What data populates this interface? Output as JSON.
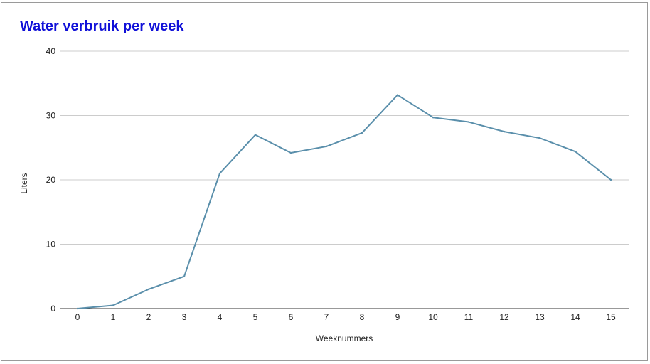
{
  "chart_data": {
    "type": "line",
    "title": "Water verbruik per week",
    "xlabel": "Weeknummers",
    "ylabel": "Liters",
    "x": [
      0,
      1,
      2,
      3,
      4,
      5,
      6,
      7,
      8,
      9,
      10,
      11,
      12,
      13,
      14,
      15
    ],
    "series": [
      {
        "values": [
          0,
          0.5,
          3,
          5,
          21,
          27,
          24.2,
          25.2,
          27.3,
          33.2,
          29.7,
          29,
          27.5,
          26.5,
          24.4,
          20
        ]
      }
    ],
    "ylim": [
      0,
      40
    ],
    "yticks": [
      0,
      10,
      20,
      30,
      40
    ],
    "xticks": [
      0,
      1,
      2,
      3,
      4,
      5,
      6,
      7,
      8,
      9,
      10,
      11,
      12,
      13,
      14,
      15
    ],
    "grid": true,
    "legend": "none"
  },
  "colors": {
    "title": "#1010d8",
    "line": "#5a8fab",
    "grid": "#cccccc",
    "axis": "#333333"
  }
}
